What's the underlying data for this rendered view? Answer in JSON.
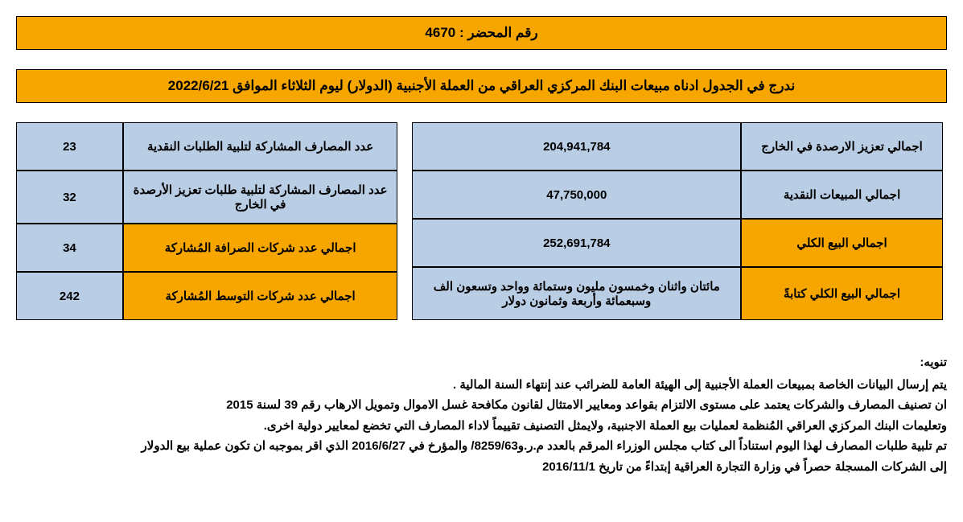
{
  "colors": {
    "orange": "#f7a600",
    "blue": "#b9cde5",
    "border": "#000000",
    "text": "#000000",
    "background": "#ffffff"
  },
  "header": {
    "record_number": "رقم المحضر : 4670",
    "subtitle": "ندرج في الجدول ادناه مبيعات البنك المركزي العراقي من العملة الأجنبية (الدولار)  ليوم الثلاثاء الموافق 2022/6/21"
  },
  "right_table": {
    "rows": [
      {
        "label": "اجمالي تعزيز الارصدة في الخارج",
        "value": "204,941,784",
        "style": "blue"
      },
      {
        "label": "اجمالي المبيعات النقدية",
        "value": "47,750,000",
        "style": "blue"
      },
      {
        "label": "اجمالي البيع الكلي",
        "value": "252,691,784",
        "style": "orange"
      },
      {
        "label": "اجمالي البيع الكلي كتابةً",
        "value": "مائتان واثنان وخمسون مليون وستمائة وواحد وتسعون الف وسبعمائة وأربعة وثمانون دولار",
        "style": "orange"
      }
    ]
  },
  "left_table": {
    "rows": [
      {
        "label": "عدد المصارف المشاركة لتلبية الطلبات النقدية",
        "value": "23",
        "style": "blue"
      },
      {
        "label": "عدد المصارف المشاركة لتلبية طلبات تعزيز الأرصدة في الخارج",
        "value": "32",
        "style": "blue"
      },
      {
        "label": "اجمالي عدد شركات الصرافة المُشاركة",
        "value": "34",
        "style": "orange"
      },
      {
        "label": "اجمالي عدد شركات التوسط المُشاركة",
        "value": "242",
        "style": "orange"
      }
    ]
  },
  "notes": {
    "title": "تنويه:",
    "lines": [
      "يتم إرسال البيانات الخاصة بمبيعات العملة الأجنبية إلى الهيئة العامة للضرائب عند إنتهاء السنة المالية .",
      "ان تصنيف المصارف والشركات يعتمد على مستوى الالتزام بقواعد ومعايير الامتثال لقانون مكافحة غسل الاموال وتمويل الارهاب رقم 39 لسنة 2015",
      "وتعليمات البنك المركزي العراقي المُنظمة لعمليات بيع العملة الاجنبية، ولايمثل التصنيف تقييماً لاداء المصارف التي تخضع لمعايير دولية اخرى.",
      "تم تلبية طلبات المصارف لهذا اليوم استناداً الى كتاب مجلس الوزراء المرقم بالعدد م.ر.و8259/63/ والمؤرخ في 2016/6/27 الذي اقر بموجبه ان تكون عملية بيع الدولار",
      "إلى الشركات المسجلة حصراً في وزارة التجارة العراقية إبتداءً من تاريخ  2016/11/1"
    ]
  }
}
